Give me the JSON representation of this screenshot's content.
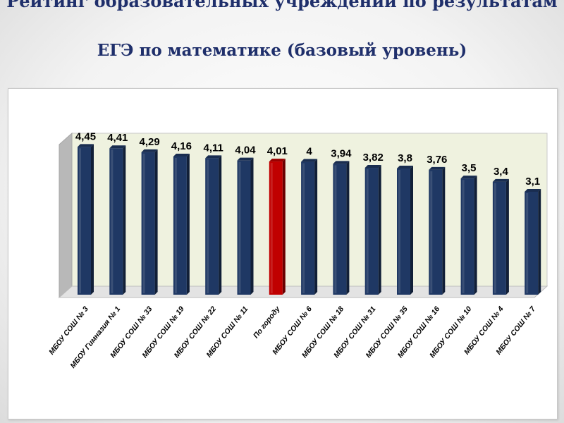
{
  "slide": {
    "title_top": "Рейтинг образовательных учреждений по результатам",
    "title_main": "ЕГЭ по математике (базовый уровень)"
  },
  "colors": {
    "bar": "#1f3864",
    "bar_highlight": "#c00000",
    "plot_back": "#eff2df",
    "plot_wall": "#b8b8b8"
  },
  "chart_data": {
    "type": "bar",
    "title": "",
    "xlabel": "",
    "ylabel": "",
    "grid": false,
    "legend": "none",
    "categories": [
      "МБОУ СОШ № 3",
      "МБОУ Гимназия № 1",
      "МБОУ СОШ № 33",
      "МБОУ СОШ № 19",
      "МБОУ СОШ № 22",
      "МБОУ СОШ № 11",
      "По городу",
      "МБОУ СОШ № 6",
      "МБОУ СОШ № 18",
      "МБОУ СОШ № 31",
      "МБОУ СОШ № 35",
      "МБОУ СОШ № 16",
      "МБОУ СОШ № 10",
      "МБОУ СОШ № 4",
      "МБОУ СОШ № 7"
    ],
    "values": [
      4.45,
      4.41,
      4.29,
      4.16,
      4.11,
      4.04,
      4.01,
      4,
      3.94,
      3.82,
      3.8,
      3.76,
      3.5,
      3.4,
      3.1
    ],
    "value_labels": [
      "4,45",
      "4,41",
      "4,29",
      "4,16",
      "4,11",
      "4,04",
      "4,01",
      "4",
      "3,94",
      "3,82",
      "3,8",
      "3,76",
      "3,5",
      "3,4",
      "3,1"
    ],
    "highlighted_category": "По городу",
    "ylim": [
      0,
      4.5
    ]
  }
}
